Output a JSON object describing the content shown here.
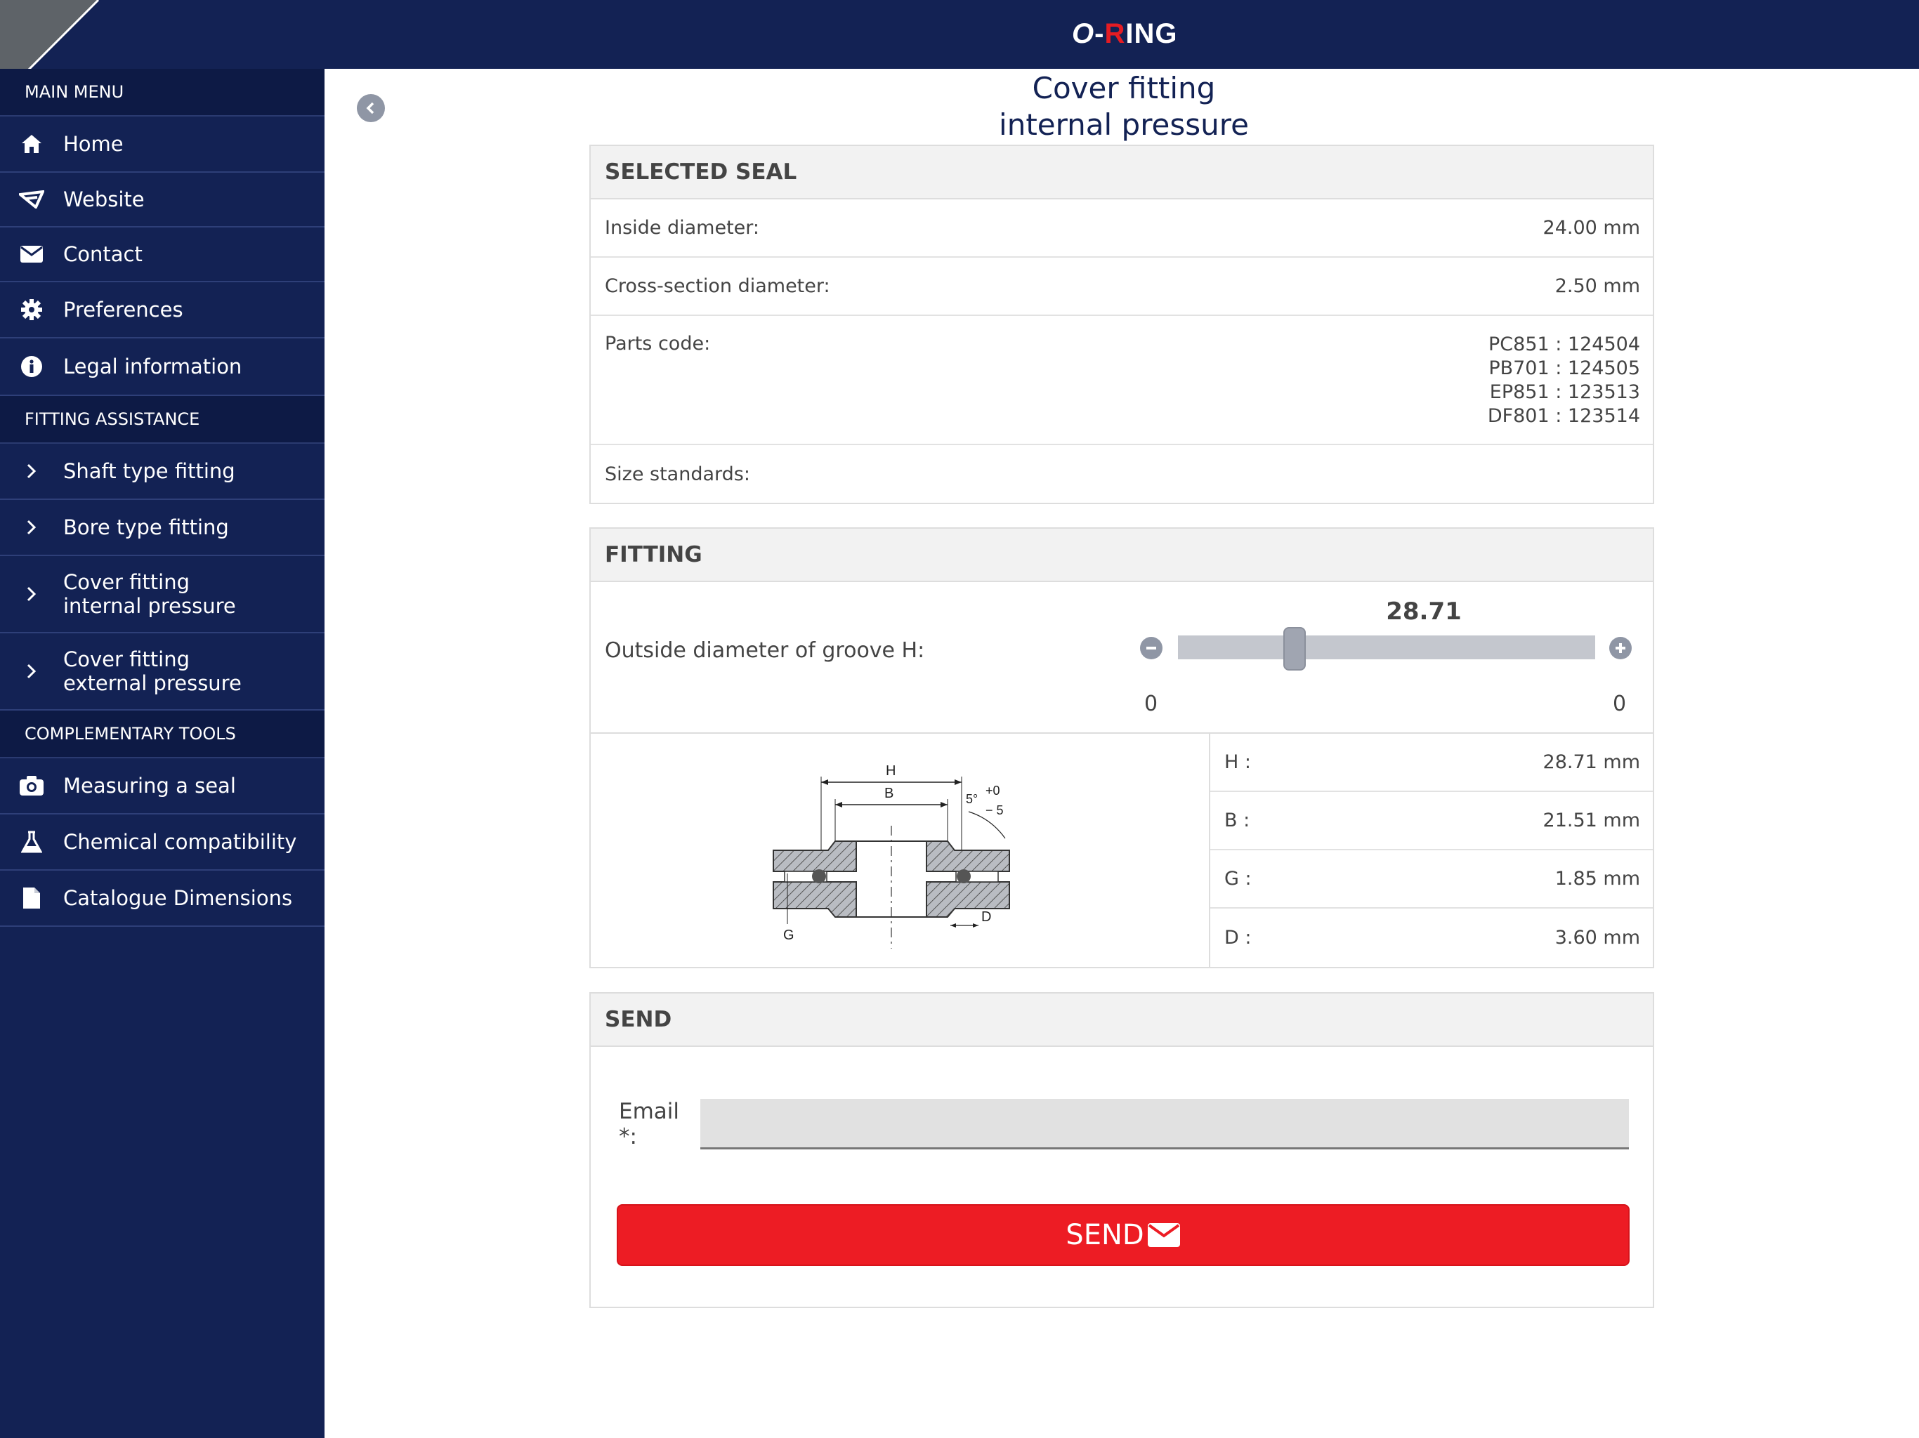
{
  "app": {
    "logo": {
      "o": "O",
      "dash": "-",
      "r": "R",
      "rest": "ING"
    }
  },
  "sidebar": {
    "main_menu_title": "MAIN MENU",
    "main_items": [
      {
        "label": "Home",
        "icon": "home-icon"
      },
      {
        "label": "Website",
        "icon": "website-logo-icon"
      },
      {
        "label": "Contact",
        "icon": "envelope-icon"
      },
      {
        "label": "Preferences",
        "icon": "gear-icon"
      },
      {
        "label": "Legal information",
        "icon": "info-icon"
      }
    ],
    "fitting_title": "FITTING ASSISTANCE",
    "fitting_items": [
      {
        "label": "Shaft type fitting"
      },
      {
        "label": "Bore type fitting"
      },
      {
        "label1": "Cover fitting",
        "label2": "internal pressure"
      },
      {
        "label1": "Cover fitting",
        "label2": "external pressure"
      }
    ],
    "tools_title": "COMPLEMENTARY TOOLS",
    "tools_items": [
      {
        "label": "Measuring a seal",
        "icon": "camera-icon"
      },
      {
        "label": "Chemical compatibility",
        "icon": "flask-icon"
      },
      {
        "label": "Catalogue Dimensions",
        "icon": "document-icon"
      }
    ]
  },
  "page": {
    "title_line1": "Cover fitting",
    "title_line2": "internal pressure"
  },
  "selected_seal": {
    "header": "SELECTED SEAL",
    "inside_label": "Inside diameter:",
    "inside_value": "24.00 mm",
    "cross_label": "Cross-section diameter:",
    "cross_value": "2.50 mm",
    "parts_label": "Parts code:",
    "parts_codes": [
      "PC851 : 124504",
      "PB701 : 124505",
      "EP851 : 123513",
      "DF801 : 123514"
    ],
    "size_label": "Size standards:",
    "size_value": ""
  },
  "fitting": {
    "header": "FITTING",
    "slider_label": "Outside diameter of groove H:",
    "slider_value": "28.71",
    "slider_fraction": 0.28,
    "range_min": "0",
    "range_max": "0",
    "diagram_labels": {
      "h": "H",
      "b": "B",
      "g": "G",
      "d": "D",
      "angle": "5°",
      "tol_plus": "+0",
      "tol_minus": "− 5"
    },
    "dims": [
      {
        "label": "H :",
        "value": "28.71 mm"
      },
      {
        "label": "B :",
        "value": "21.51 mm"
      },
      {
        "label": "G :",
        "value": "1.85 mm"
      },
      {
        "label": "D :",
        "value": "3.60 mm"
      }
    ]
  },
  "send": {
    "header": "SEND",
    "email_label": "Email *:",
    "email_value": "",
    "button_label": "SEND"
  },
  "colors": {
    "navy": "#132254",
    "accent_red": "#ed1c24"
  }
}
